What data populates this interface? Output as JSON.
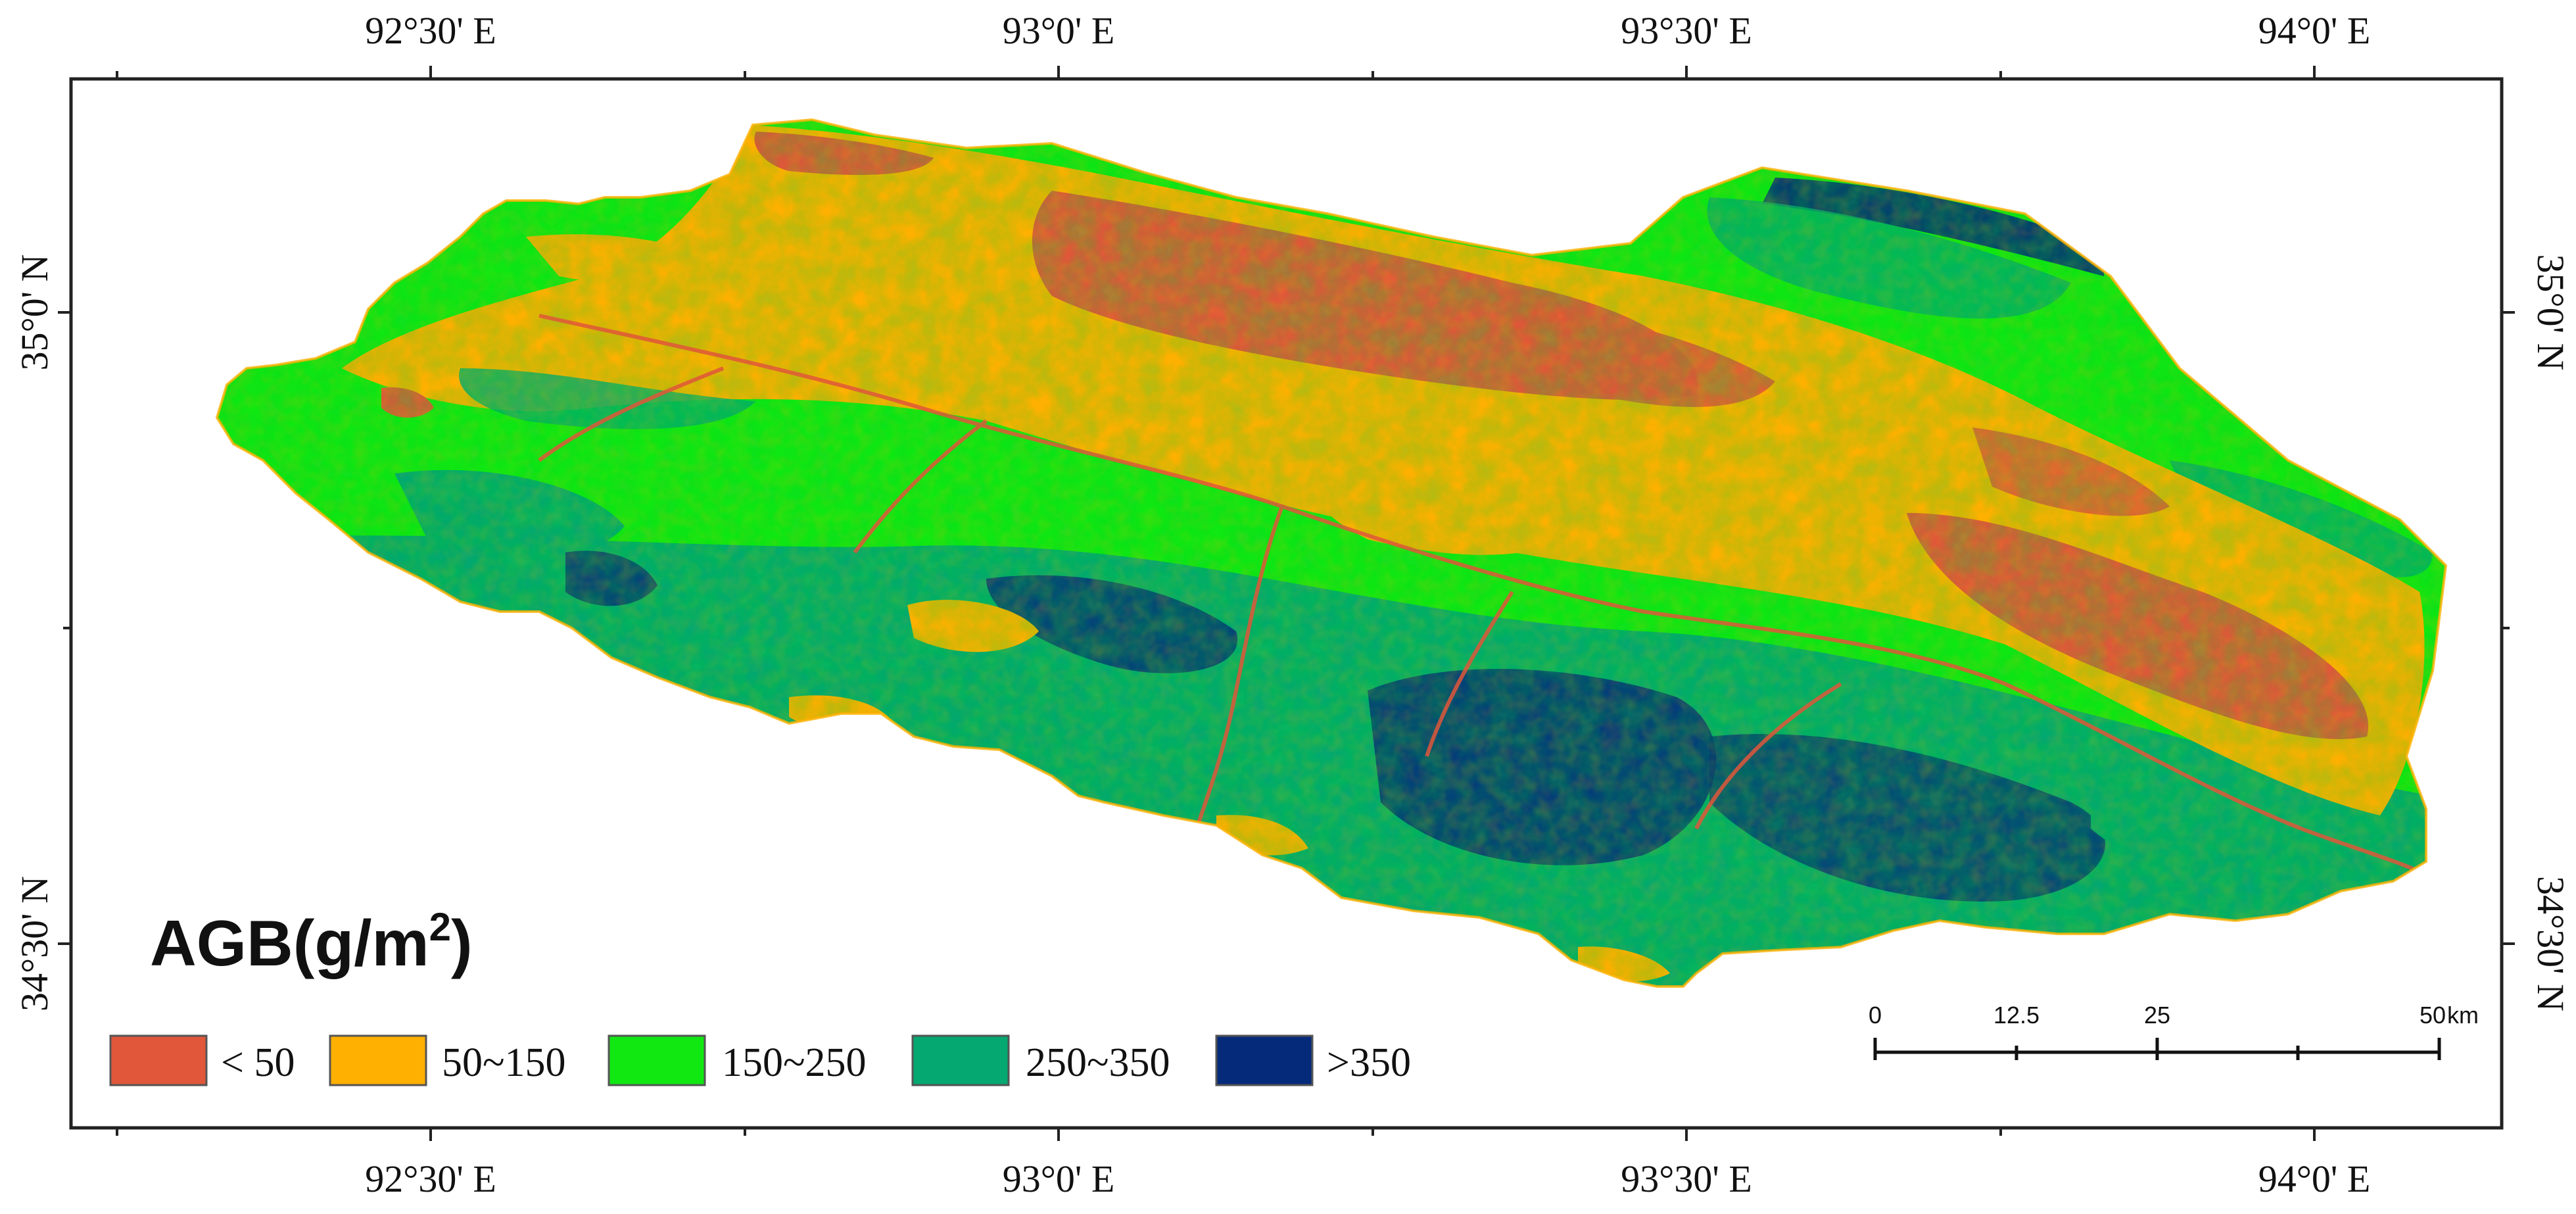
{
  "map": {
    "title": "AGB(g/m²)",
    "title_main": "AGB(g/m",
    "title_sup": "2",
    "title_close": ")",
    "top_labels": [
      "92°30' E",
      "93°0' E",
      "93°30' E",
      "94°0' E"
    ],
    "bottom_labels": [
      "92°30' E",
      "93°0' E",
      "93°30' E",
      "94°0' E"
    ],
    "left_labels": [
      "35°0' N",
      "34°30' N"
    ],
    "right_labels": [
      "35°0' N",
      "34°30' N"
    ],
    "legend": [
      {
        "label": "< 50",
        "color": "#e0573a"
      },
      {
        "label": "50~150",
        "color": "#ffb000"
      },
      {
        "label": "150~250",
        "color": "#11e812"
      },
      {
        "label": "250~350",
        "color": "#04a870"
      },
      {
        "label": ">350",
        "color": "#062a7a"
      }
    ],
    "scale_bar": {
      "labels": [
        "0",
        "12.5",
        "25",
        "50"
      ],
      "unit": "km"
    }
  }
}
